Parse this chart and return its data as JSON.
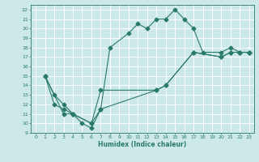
{
  "xlabel": "Humidex (Indice chaleur)",
  "bg_color": "#cce8e8",
  "grid_color": "#b0d8d8",
  "line_color": "#2a7a6a",
  "xlim": [
    -0.5,
    23.5
  ],
  "ylim": [
    9,
    22.5
  ],
  "xticks": [
    0,
    1,
    2,
    3,
    4,
    5,
    6,
    7,
    8,
    9,
    10,
    11,
    12,
    13,
    14,
    15,
    16,
    17,
    18,
    19,
    20,
    21,
    22,
    23
  ],
  "yticks": [
    9,
    10,
    11,
    12,
    13,
    14,
    15,
    16,
    17,
    18,
    19,
    20,
    21,
    22
  ],
  "curve1_x": [
    1,
    2,
    3,
    4,
    5,
    6,
    7,
    8,
    10,
    11,
    12,
    13,
    14,
    15,
    16,
    17,
    18,
    20,
    21,
    22,
    23
  ],
  "curve1_y": [
    15,
    13,
    12,
    11,
    10,
    9.5,
    11.5,
    18,
    19.5,
    20.5,
    20.0,
    21,
    21,
    22,
    21,
    20,
    17.5,
    17.5,
    18,
    17.5,
    17.5
  ],
  "curve2_x": [
    1,
    3,
    4,
    6,
    7,
    13,
    14,
    17,
    20,
    21,
    22,
    23
  ],
  "curve2_y": [
    15,
    11,
    11,
    10,
    13.5,
    13.5,
    14,
    17.5,
    17.0,
    17.5,
    17.5,
    17.5
  ],
  "curve3_x": [
    1,
    2,
    3,
    4,
    6,
    7,
    13,
    14,
    17,
    20,
    21,
    22,
    23
  ],
  "curve3_y": [
    15,
    12,
    11.5,
    11,
    10,
    11.5,
    13.5,
    14,
    17.5,
    17.0,
    17.5,
    17.5,
    17.5
  ],
  "marker": "D",
  "markersize": 2.5,
  "linewidth": 0.8
}
